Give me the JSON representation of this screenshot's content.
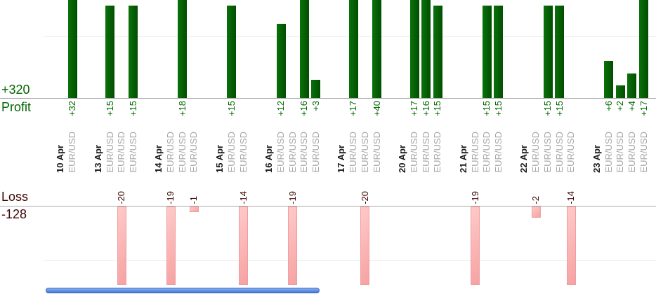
{
  "chart_data": {
    "type": "bar",
    "description": "Per-trade profit and loss report grouped by trade date",
    "profit_total": "+320",
    "profit_axis_label": "Profit",
    "loss_axis_label": "Loss",
    "loss_total": "-128",
    "gridline_interval": 10,
    "legend_position": "none",
    "groups": [
      {
        "date": "10 Apr",
        "trades": [
          {
            "symbol": "EUR/USD",
            "value": 32,
            "label": "+32"
          }
        ]
      },
      {
        "date": "13 Apr",
        "trades": [
          {
            "symbol": "EUR/USD",
            "value": 15,
            "label": "+15"
          },
          {
            "symbol": "EUR/USD",
            "value": -20,
            "label": "-20"
          },
          {
            "symbol": "EUR/USD",
            "value": 15,
            "label": "+15"
          }
        ]
      },
      {
        "date": "14 Apr",
        "trades": [
          {
            "symbol": "EUR/USD",
            "value": -19,
            "label": "-19"
          },
          {
            "symbol": "EUR/USD",
            "value": 18,
            "label": "+18"
          },
          {
            "symbol": "EUR/USD",
            "value": -1,
            "label": "-1"
          }
        ]
      },
      {
        "date": "15 Apr",
        "trades": [
          {
            "symbol": "EUR/USD",
            "value": 15,
            "label": "+15"
          },
          {
            "symbol": "EUR/USD",
            "value": -14,
            "label": "-14"
          }
        ]
      },
      {
        "date": "16 Apr",
        "trades": [
          {
            "symbol": "EUR/USD",
            "value": 12,
            "label": "+12"
          },
          {
            "symbol": "EUR/USD",
            "value": -19,
            "label": "-19"
          },
          {
            "symbol": "EUR/USD",
            "value": 16,
            "label": "+16"
          },
          {
            "symbol": "EUR/USD",
            "value": 3,
            "label": "+3"
          }
        ]
      },
      {
        "date": "17 Apr",
        "trades": [
          {
            "symbol": "EUR/USD",
            "value": 17,
            "label": "+17"
          },
          {
            "symbol": "EUR/USD",
            "value": -20,
            "label": "-20"
          },
          {
            "symbol": "EUR/USD",
            "value": 40,
            "label": "+40"
          }
        ]
      },
      {
        "date": "20 Apr",
        "trades": [
          {
            "symbol": "EUR/USD",
            "value": 17,
            "label": "+17"
          },
          {
            "symbol": "EUR/USD",
            "value": 16,
            "label": "+16"
          },
          {
            "symbol": "EUR/USD",
            "value": 15,
            "label": "+15"
          }
        ]
      },
      {
        "date": "21 Apr",
        "trades": [
          {
            "symbol": "EUR/USD",
            "value": -19,
            "label": "-19"
          },
          {
            "symbol": "EUR/USD",
            "value": 15,
            "label": "+15"
          },
          {
            "symbol": "EUR/USD",
            "value": 15,
            "label": "+15"
          }
        ]
      },
      {
        "date": "22 Apr",
        "trades": [
          {
            "symbol": "EUR/USD",
            "value": -2,
            "label": "-2"
          },
          {
            "symbol": "EUR/USD",
            "value": 15,
            "label": "+15"
          },
          {
            "symbol": "EUR/USD",
            "value": 15,
            "label": "+15"
          },
          {
            "symbol": "EUR/USD",
            "value": -14,
            "label": "-14"
          }
        ]
      },
      {
        "date": "23 Apr",
        "trades": [
          {
            "symbol": "EUR/USD",
            "value": 6,
            "label": "+6"
          },
          {
            "symbol": "EUR/USD",
            "value": 2,
            "label": "+2"
          },
          {
            "symbol": "EUR/USD",
            "value": 4,
            "label": "+4"
          },
          {
            "symbol": "EUR/USD",
            "value": 17,
            "label": "+17"
          }
        ]
      }
    ],
    "colors": {
      "profit_text": "#006600",
      "profit_bar": "#046004",
      "loss_text": "#3d0505",
      "loss_bar_fill": "#f9abab",
      "loss_bar_border": "#ee9e9e",
      "date_text": "#1a1a1a",
      "symbol_text": "#a6a6a6",
      "baseline": "#a8a8a8",
      "gridline": "#ececec",
      "scrollbar": "#4f82e0"
    }
  },
  "scrollbar": {
    "orientation": "horizontal"
  }
}
